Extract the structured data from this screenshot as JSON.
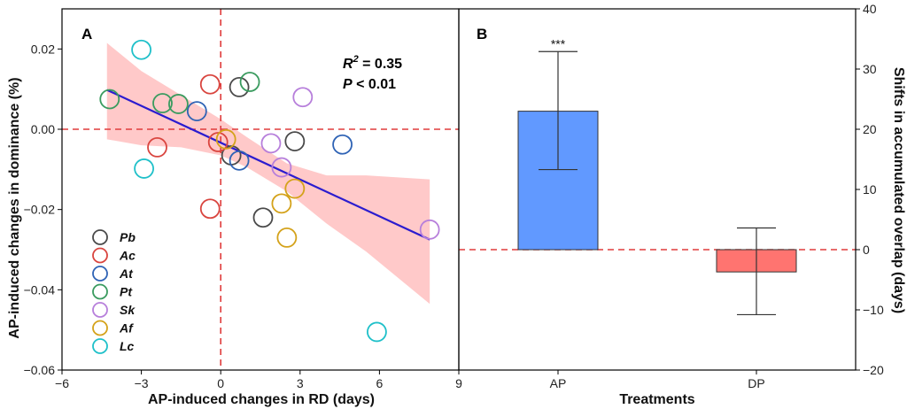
{
  "chart_data": [
    {
      "panel": "A",
      "type": "scatter",
      "xlabel": "AP-induced changes in RD (days)",
      "ylabel": "AP-induced changes in dominance (%)",
      "xlim": [
        -6,
        9
      ],
      "ylim": [
        -0.06,
        0.03
      ],
      "xticks": [
        -6,
        -3,
        0,
        3,
        6,
        9
      ],
      "yticks": [
        -0.06,
        -0.04,
        -0.02,
        0.0,
        0.02
      ],
      "ytick_labels": [
        "−0.06",
        "−0.04",
        "−0.02",
        "0.00",
        "0.02"
      ],
      "xtick_labels": [
        "−6",
        "−3",
        "0",
        "3",
        "6",
        "9"
      ],
      "reference_lines": {
        "x": 0,
        "y": 0,
        "color": "#e03c3c"
      },
      "fit": {
        "x0": -4.3,
        "y0": 0.0098,
        "x1": 7.9,
        "y1": -0.0275,
        "color": "#2b1ccf"
      },
      "confidence_band": {
        "x": [
          -4.3,
          -3,
          -1.5,
          0,
          1,
          2.5,
          4,
          5.5,
          7.9
        ],
        "upper": [
          0.0215,
          0.0145,
          0.0085,
          0.0025,
          -0.002,
          -0.0085,
          -0.0115,
          -0.0115,
          -0.0125
        ],
        "lower": [
          -0.0025,
          -0.004,
          -0.0045,
          -0.0065,
          -0.0095,
          -0.0155,
          -0.0235,
          -0.0305,
          -0.0435
        ],
        "color": "#ffc9c9"
      },
      "stats": {
        "r2_label": "R",
        "r2_sup": "2",
        "r2_value": " = 0.35",
        "p_label": "P",
        "p_value": " < 0.01"
      },
      "series": [
        {
          "name": "Pb",
          "color": "#4a4a4a",
          "points": [
            [
              0.7,
              0.0105
            ],
            [
              0.4,
              -0.0065
            ],
            [
              2.8,
              -0.003
            ],
            [
              1.6,
              -0.022
            ]
          ]
        },
        {
          "name": "Ac",
          "color": "#d9453f",
          "points": [
            [
              -0.4,
              0.0112
            ],
            [
              -2.4,
              -0.0045
            ],
            [
              -0.1,
              -0.0032
            ],
            [
              -0.4,
              -0.0198
            ]
          ]
        },
        {
          "name": "At",
          "color": "#2f63b5",
          "points": [
            [
              -0.9,
              0.0045
            ],
            [
              0.7,
              -0.0078
            ],
            [
              4.6,
              -0.0038
            ]
          ]
        },
        {
          "name": "Pt",
          "color": "#3a9b5f",
          "points": [
            [
              -4.2,
              0.0075
            ],
            [
              -2.2,
              0.0065
            ],
            [
              -1.6,
              0.0063
            ],
            [
              1.1,
              0.0118
            ]
          ]
        },
        {
          "name": "Sk",
          "color": "#b77fdb",
          "points": [
            [
              3.1,
              0.008
            ],
            [
              1.9,
              -0.0035
            ],
            [
              2.3,
              -0.0095
            ],
            [
              7.9,
              -0.025
            ]
          ]
        },
        {
          "name": "Af",
          "color": "#d4a21a",
          "points": [
            [
              0.2,
              -0.0025
            ],
            [
              2.8,
              -0.0148
            ],
            [
              2.3,
              -0.0185
            ],
            [
              2.5,
              -0.027
            ]
          ]
        },
        {
          "name": "Lc",
          "color": "#1fc0c9",
          "points": [
            [
              -3.0,
              0.0198
            ],
            [
              -2.9,
              -0.0098
            ],
            [
              5.9,
              -0.0505
            ]
          ]
        }
      ],
      "legend_placement": "bottom-left"
    },
    {
      "panel": "B",
      "type": "bar",
      "xlabel": "Treatments",
      "ylabel": "Shifts in accumulated overlap (days)",
      "ylim": [
        -20,
        40
      ],
      "yticks": [
        -20,
        -10,
        0,
        10,
        20,
        30,
        40
      ],
      "ytick_labels": [
        "−20",
        "−10",
        "0",
        "10",
        "20",
        "30",
        "40"
      ],
      "categories": [
        "AP",
        "DP"
      ],
      "values": [
        23,
        -3.7
      ],
      "error": [
        [
          13.3,
          32.9
        ],
        [
          -10.8,
          3.6
        ]
      ],
      "colors": [
        "#6199ff",
        "#ff7470"
      ],
      "significance": [
        "***",
        ""
      ],
      "reference_line_y": 0,
      "axis_side": "right"
    }
  ]
}
